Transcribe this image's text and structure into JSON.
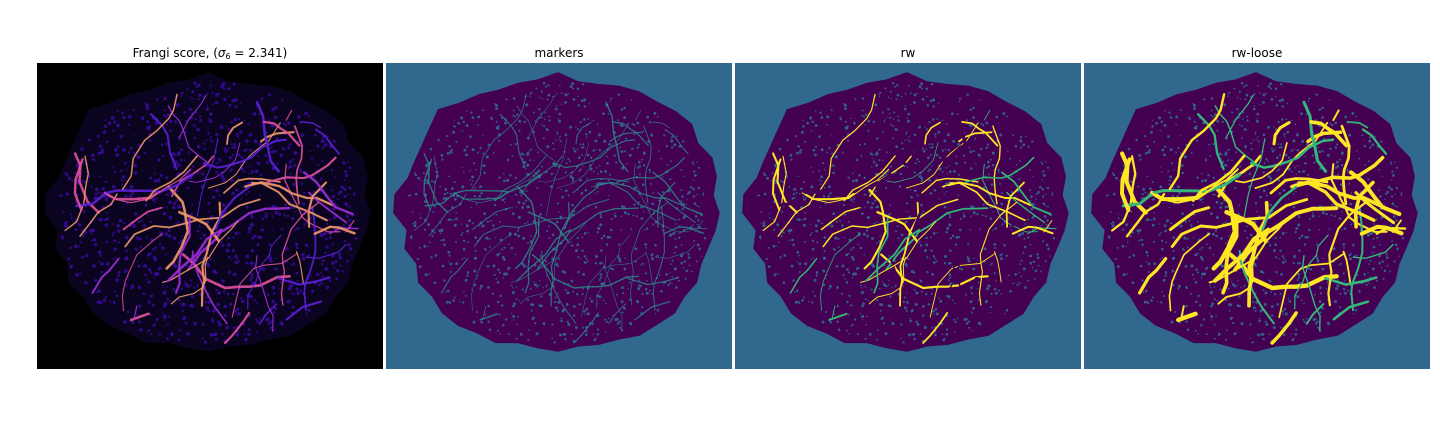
{
  "figure": {
    "panels": [
      {
        "id": "frangi",
        "title_prefix": "Frangi score, (",
        "title_symbol": "σ",
        "title_subscript": "6",
        "title_suffix": " = 2.341)",
        "colormap": "plasma",
        "background_color": "#000000",
        "blob_color": "#3a0a9c",
        "vessel_colors": [
          "#5b1fd6",
          "#9c2fd6",
          "#e0529a",
          "#f29a6a"
        ]
      },
      {
        "id": "markers",
        "title": "markers",
        "colormap": "viridis",
        "background_color": "#31688e",
        "blob_color": "#440154",
        "vessel_colors": [
          "#2a8f8a"
        ]
      },
      {
        "id": "rw",
        "title": "rw",
        "colormap": "viridis",
        "background_color": "#31688e",
        "blob_color": "#440154",
        "vessel_colors": [
          "#35b779",
          "#fde725"
        ]
      },
      {
        "id": "rw-loose",
        "title": "rw-loose",
        "colormap": "viridis",
        "background_color": "#31688e",
        "blob_color": "#440154",
        "vessel_colors": [
          "#35b779",
          "#fde725"
        ]
      }
    ]
  }
}
